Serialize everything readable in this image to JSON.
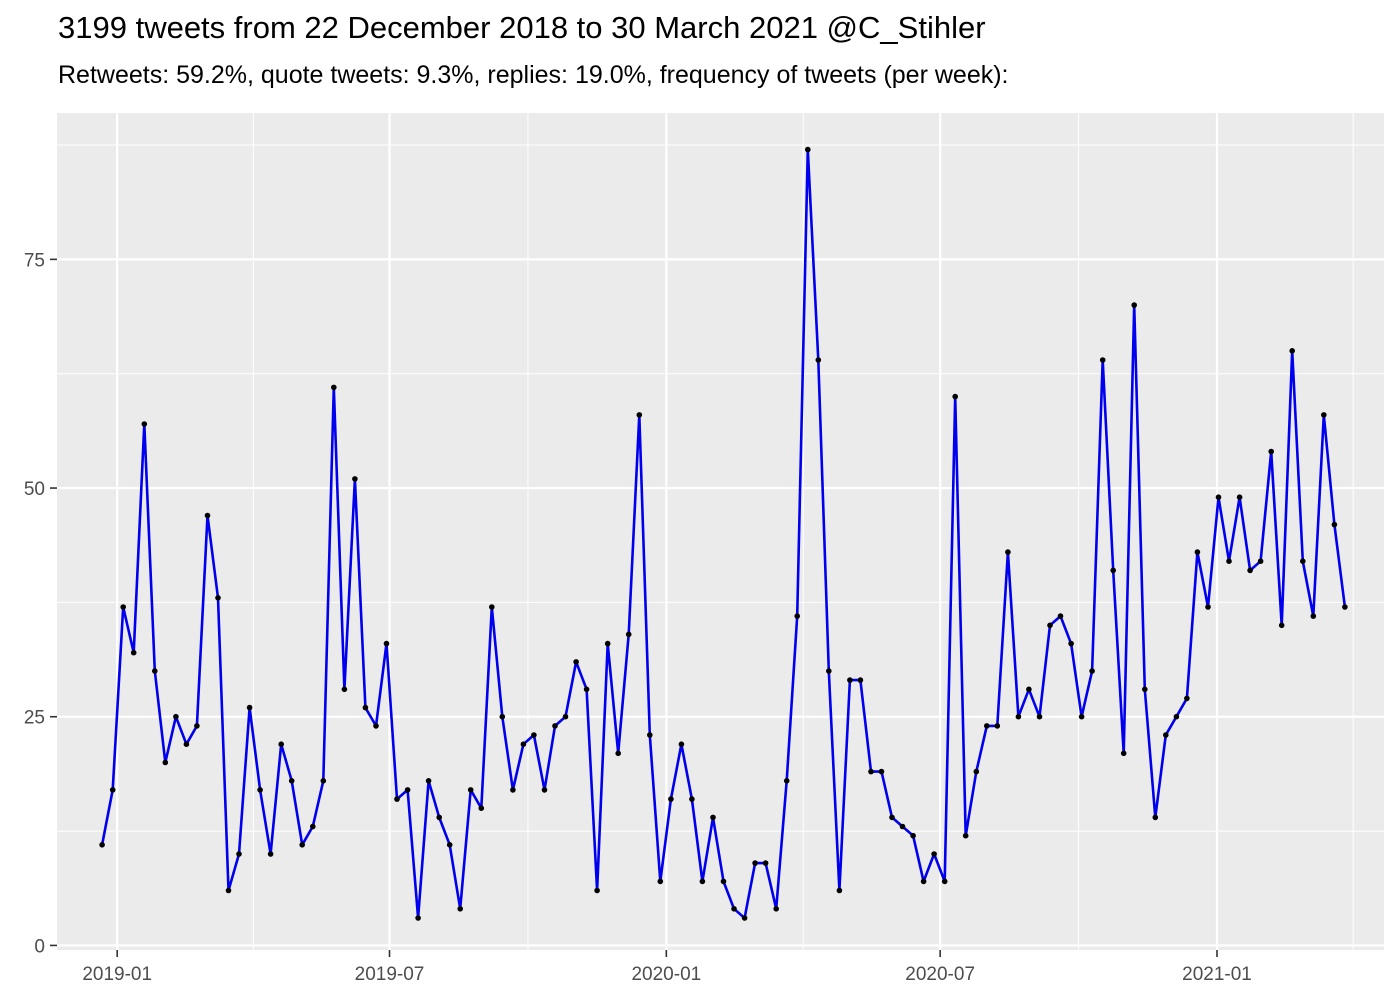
{
  "chart_data": {
    "type": "line",
    "title": "3199 tweets from 22 December 2018 to 30 March 2021 @C_Stihler",
    "subtitle": "Retweets: 59.2%, quote tweets: 9.3%, replies: 19.0%, frequency of tweets (per week):",
    "xlabel": "",
    "ylabel": "",
    "x_start": "2018-12-22",
    "x_step_days": 7,
    "xlim": [
      "2018-11-22",
      "2021-04-22"
    ],
    "ylim": [
      -0.5,
      91
    ],
    "x_ticks": [
      "2019-01",
      "2019-07",
      "2020-01",
      "2020-07",
      "2021-01"
    ],
    "y_ticks": [
      0,
      25,
      50,
      75
    ],
    "grid": true,
    "legend": "none",
    "line_color": "#0000ee",
    "point_color": "#000000",
    "panel_background": "#ebebeb",
    "series": [
      {
        "values": [
          11,
          17,
          37,
          32,
          57,
          30,
          20,
          25,
          22,
          24,
          47,
          38,
          6,
          10,
          26,
          17,
          10,
          22,
          18,
          11,
          13,
          18,
          61,
          28,
          51,
          26,
          24,
          33,
          16,
          17,
          3,
          18,
          14,
          11,
          4,
          17,
          15,
          37,
          25,
          17,
          22,
          23,
          17,
          24,
          25,
          31,
          28,
          6,
          33,
          21,
          34,
          58,
          23,
          7,
          16,
          22,
          16,
          7,
          14,
          7,
          4,
          3,
          9,
          9,
          4,
          18,
          36,
          87,
          64,
          30,
          6,
          29,
          29,
          19,
          19,
          14,
          13,
          12,
          7,
          10,
          7,
          60,
          12,
          19,
          24,
          24,
          43,
          25,
          28,
          25,
          35,
          36,
          33,
          25,
          30,
          64,
          41,
          21,
          70,
          28,
          14,
          23,
          25,
          27,
          43,
          37,
          49,
          42,
          49,
          41,
          42,
          54,
          35,
          65,
          42,
          36,
          58,
          46,
          37
        ]
      }
    ]
  }
}
